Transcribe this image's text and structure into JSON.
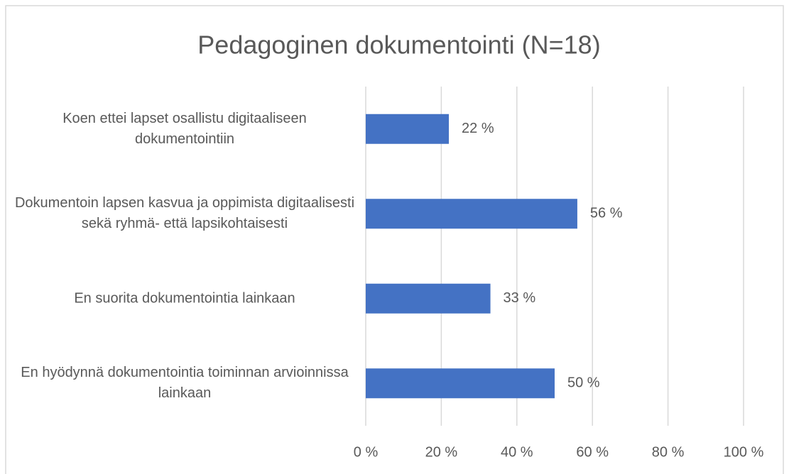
{
  "chart_data": {
    "type": "barh",
    "title": "Pedagoginen dokumentointi (N=18)",
    "categories": [
      "Koen ettei lapset osallistu digitaaliseen dokumentointiin",
      "Dokumentoin lapsen kasvua ja oppimista digitaalisesti sekä ryhmä- että lapsikohtaisesti",
      "En suorita dokumentointia lainkaan",
      "En hyödynnä dokumentointia toiminnan arvioinnissa lainkaan"
    ],
    "values": [
      22,
      56,
      33,
      50
    ],
    "value_labels": [
      "22 %",
      "56 %",
      "33 %",
      "50 %"
    ],
    "color": "#4472c4",
    "xlim": [
      0,
      100
    ],
    "xticks": [
      {
        "value": 0,
        "label": "0 %"
      },
      {
        "value": 20,
        "label": "20 %"
      },
      {
        "value": 40,
        "label": "40 %"
      },
      {
        "value": 60,
        "label": "60 %"
      },
      {
        "value": 80,
        "label": "80 %"
      },
      {
        "value": 100,
        "label": "100 %"
      }
    ],
    "grid": true
  }
}
